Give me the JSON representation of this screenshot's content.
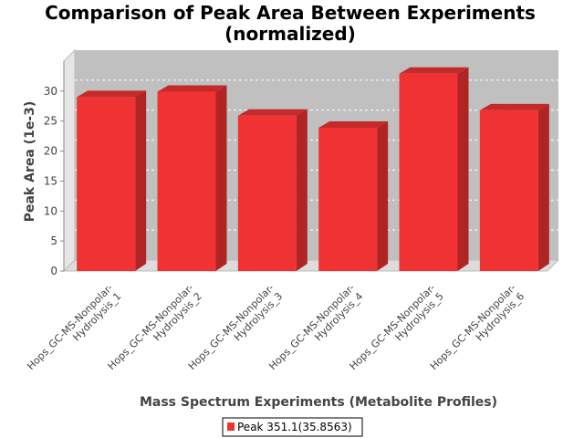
{
  "colors": {
    "bar_front": "#f03232",
    "bar_top": "#c42a2a",
    "bar_side": "#b02424",
    "plot_back": "#c0c0c0",
    "plot_floor": "#dcdcdc",
    "plot_left": "#e6e6e6",
    "axis": "#888888",
    "grid": "#ffffff"
  },
  "chart_data": {
    "type": "bar",
    "title": [
      "Comparison of Peak Area Between Experiments",
      "(normalized)"
    ],
    "xlabel": "Mass Spectrum Experiments (Metabolite Profiles)",
    "ylabel": "Peak Area (1e-3)",
    "ylim": [
      0,
      35
    ],
    "yticks": [
      0,
      5,
      10,
      15,
      20,
      25,
      30
    ],
    "categories": [
      [
        "Hops_GC-MS-Nonpolar-",
        "Hydrolysis_1"
      ],
      [
        "Hops_GC-MS-Nonpolar-",
        "Hydrolysis_2"
      ],
      [
        "Hops_GC-MS-Nonpolar-",
        "Hydrolysis_3"
      ],
      [
        "Hops_GC-MS-Nonpolar-",
        "Hydrolysis_4"
      ],
      [
        "Hops_GC-MS-Nonpolar-",
        "Hydrolysis_5"
      ],
      [
        "Hops_GC-MS-Nonpolar-",
        "Hydrolysis_6"
      ]
    ],
    "series": [
      {
        "name": "Peak 351.1(35.8563)",
        "values": [
          29.0,
          29.9,
          25.9,
          23.9,
          32.9,
          26.8
        ]
      }
    ],
    "grid": true,
    "legend": "bottom-center"
  }
}
